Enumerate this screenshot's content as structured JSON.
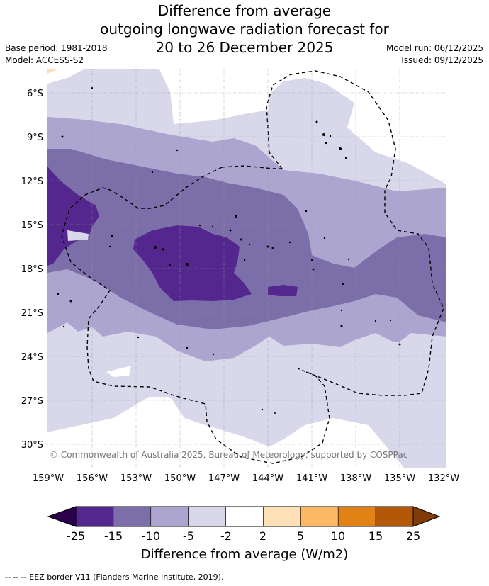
{
  "title": {
    "line1": "Difference from average",
    "line2": "outgoing longwave radiation forecast for",
    "line3": "20 to 26 December 2025"
  },
  "meta": {
    "base_period": "Base period: 1981-2018",
    "model": "Model: ACCESS-S2",
    "model_run": "Model run: 06/12/2025",
    "issued": "Issued: 09/12/2025"
  },
  "map": {
    "lon_labels": [
      "159°W",
      "156°W",
      "153°W",
      "150°W",
      "147°W",
      "144°W",
      "141°W",
      "138°W",
      "135°W",
      "132°W"
    ],
    "lat_labels": [
      "6°S",
      "9°S",
      "12°S",
      "15°S",
      "18°S",
      "21°S",
      "24°S",
      "27°S",
      "30°S"
    ],
    "copyright": "© Commonwealth of Australia 2025, Bureau of Meteorology, supported by COSPPac"
  },
  "colorbar": {
    "ticks": [
      "-25",
      "-15",
      "-10",
      "-5",
      "-2",
      "2",
      "5",
      "10",
      "15",
      "25"
    ],
    "colors": [
      "#54278f",
      "#7c6ea8",
      "#aca5cf",
      "#d8d8ea",
      "#ffffff",
      "#fde0b5",
      "#fdb863",
      "#e08214",
      "#b35806"
    ],
    "under_color": "#2d004b",
    "over_color": "#7f3b08",
    "label": "Difference from average (W/m2)"
  },
  "footer": {
    "eez_legend": "--  --  -- EEZ border V11 (Flanders Marine Institute, 2019)."
  }
}
